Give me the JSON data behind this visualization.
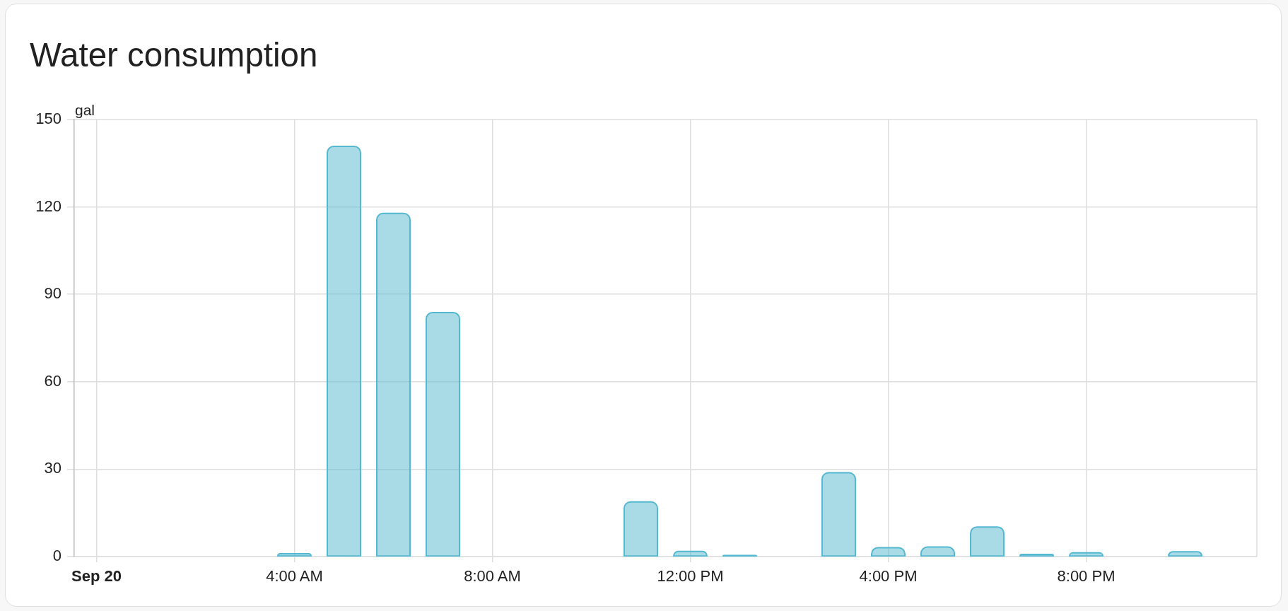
{
  "chart_data": {
    "type": "bar",
    "title": "Water consumption",
    "ylabel": "gal",
    "x": [
      4,
      5,
      6,
      7,
      11,
      12,
      13,
      15,
      16,
      17,
      18,
      19,
      20,
      22
    ],
    "values": [
      1.2,
      141,
      118,
      84,
      19,
      2,
      0.6,
      29,
      3.3,
      3.5,
      10.4,
      1,
      1.5,
      1.9
    ],
    "color": "#54b8d0",
    "xlim": [
      -0.45,
      23.45
    ],
    "xticks": [
      {
        "value": 0,
        "label": "Sep 20"
      },
      {
        "value": 4,
        "label": "4:00 AM"
      },
      {
        "value": 8,
        "label": "8:00 AM"
      },
      {
        "value": 12,
        "label": "12:00 PM"
      },
      {
        "value": 16,
        "label": "4:00 PM"
      },
      {
        "value": 20,
        "label": "8:00 PM"
      }
    ],
    "ylim": [
      0,
      150
    ],
    "yticks": [
      0,
      30,
      60,
      90,
      120,
      150
    ],
    "grid": true
  }
}
